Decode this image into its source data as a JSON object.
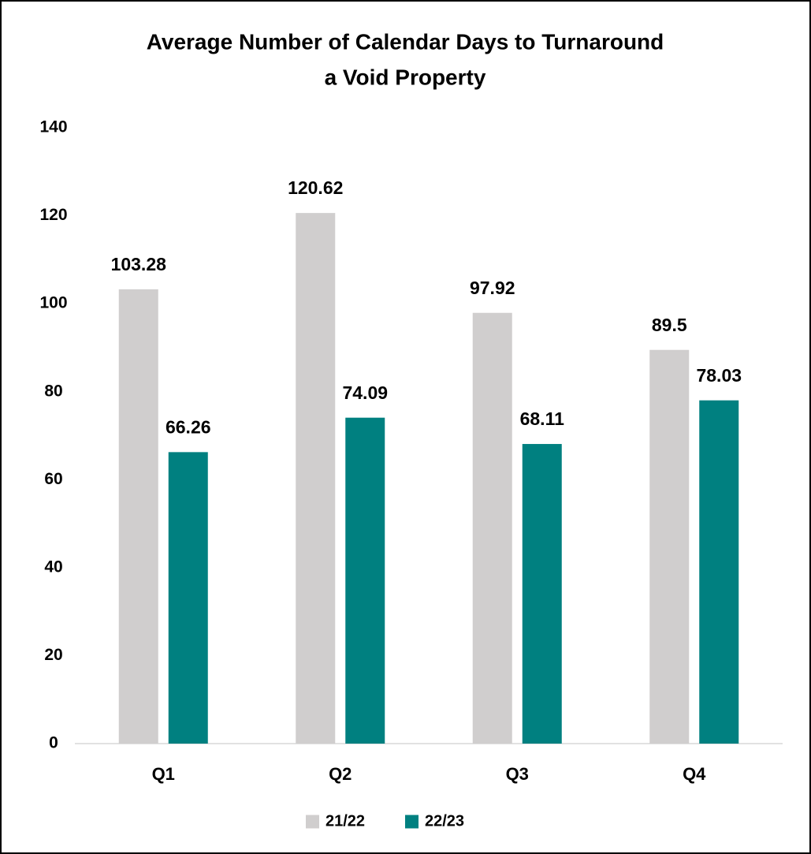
{
  "chart_data": {
    "type": "bar",
    "title": [
      "Average Number of Calendar Days to Turnaround",
      "a Void Property"
    ],
    "categories": [
      "Q1",
      "Q2",
      "Q3",
      "Q4"
    ],
    "series": [
      {
        "name": "21/22",
        "color": "#d0cece",
        "values": [
          103.28,
          120.62,
          97.92,
          89.5
        ]
      },
      {
        "name": "22/23",
        "color": "#008080",
        "values": [
          66.26,
          74.09,
          68.11,
          78.03
        ]
      }
    ],
    "ylim": [
      0,
      140
    ],
    "yticks": [
      0,
      20,
      40,
      60,
      80,
      100,
      120,
      140
    ],
    "grid": false,
    "legend": "bottom"
  }
}
